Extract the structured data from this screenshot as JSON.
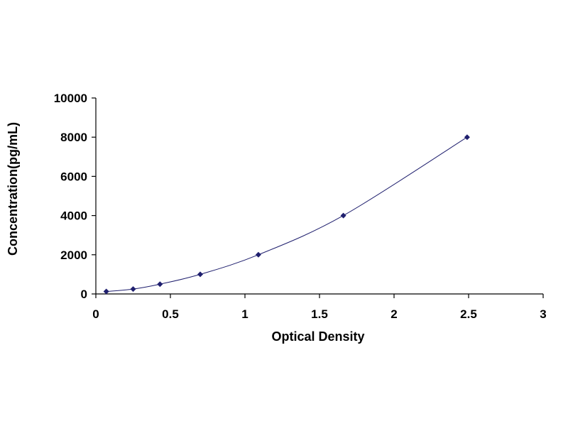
{
  "chart_data": {
    "type": "scatter",
    "xlabel": "Optical Density",
    "ylabel": "Concentration(pg/mL)",
    "xlim": [
      0,
      3
    ],
    "ylim": [
      0,
      10000
    ],
    "x_ticks": [
      "0",
      "0.5",
      "1",
      "1.5",
      "2",
      "2.5",
      "3"
    ],
    "y_ticks": [
      "0",
      "2000",
      "4000",
      "6000",
      "8000",
      "10000"
    ],
    "grid": false,
    "legend": "none",
    "trendline": "smooth curve through points",
    "series": [
      {
        "x": [
          0.07,
          0.25,
          0.43,
          0.7,
          1.09,
          1.66,
          2.49
        ],
        "y": [
          125,
          250,
          500,
          1000,
          2000,
          4000,
          8000
        ],
        "marker": "diamond",
        "color": "#1f1f6e"
      }
    ]
  }
}
